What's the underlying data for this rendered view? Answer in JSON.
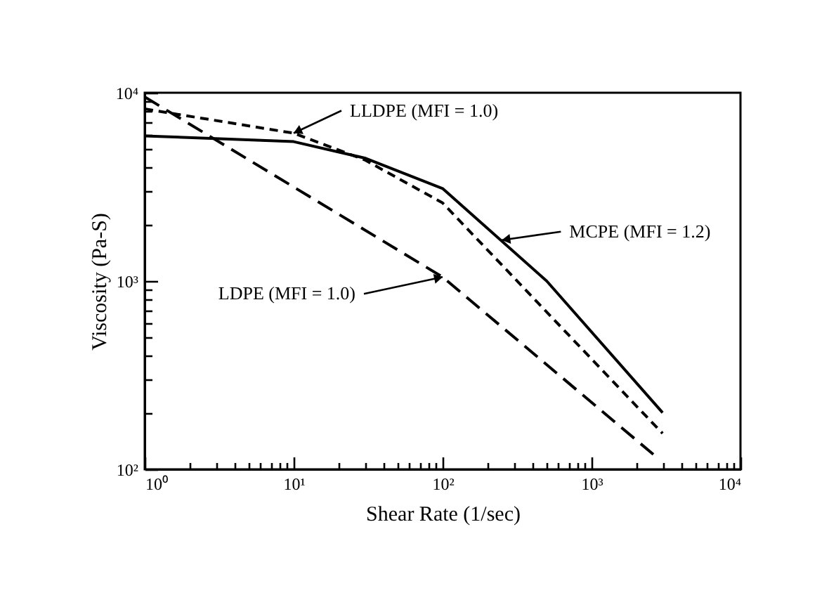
{
  "chart_data": {
    "type": "line",
    "xlabel": "Shear Rate (1/sec)",
    "ylabel": "Viscosity (Pa-S)",
    "log": "xy",
    "grid": false,
    "xlim": [
      1,
      10000
    ],
    "ylim": [
      100,
      10000
    ],
    "xticks": [
      {
        "value": 1,
        "label": "10⁰"
      },
      {
        "value": 2,
        "label": null
      },
      {
        "value": 3,
        "label": null
      },
      {
        "value": 4,
        "label": null
      },
      {
        "value": 5,
        "label": null
      },
      {
        "value": 6,
        "label": null
      },
      {
        "value": 7,
        "label": null
      },
      {
        "value": 8,
        "label": null
      },
      {
        "value": 9,
        "label": null
      },
      {
        "value": 10,
        "label": "10¹"
      },
      {
        "value": 20,
        "label": null
      },
      {
        "value": 30,
        "label": null
      },
      {
        "value": 40,
        "label": null
      },
      {
        "value": 50,
        "label": null
      },
      {
        "value": 60,
        "label": null
      },
      {
        "value": 70,
        "label": null
      },
      {
        "value": 80,
        "label": null
      },
      {
        "value": 90,
        "label": null
      },
      {
        "value": 100,
        "label": "10²"
      },
      {
        "value": 200,
        "label": null
      },
      {
        "value": 300,
        "label": null
      },
      {
        "value": 400,
        "label": null
      },
      {
        "value": 500,
        "label": null
      },
      {
        "value": 600,
        "label": null
      },
      {
        "value": 700,
        "label": null
      },
      {
        "value": 800,
        "label": null
      },
      {
        "value": 900,
        "label": null
      },
      {
        "value": 1000,
        "label": "10³"
      },
      {
        "value": 2000,
        "label": null
      },
      {
        "value": 3000,
        "label": null
      },
      {
        "value": 4000,
        "label": null
      },
      {
        "value": 5000,
        "label": null
      },
      {
        "value": 6000,
        "label": null
      },
      {
        "value": 7000,
        "label": null
      },
      {
        "value": 8000,
        "label": null
      },
      {
        "value": 9000,
        "label": null
      },
      {
        "value": 10000,
        "label": "10⁴"
      }
    ],
    "yticks": [
      {
        "value": 100,
        "label": "10²"
      },
      {
        "value": 200,
        "label": null
      },
      {
        "value": 300,
        "label": null
      },
      {
        "value": 400,
        "label": null
      },
      {
        "value": 500,
        "label": null
      },
      {
        "value": 600,
        "label": null
      },
      {
        "value": 700,
        "label": null
      },
      {
        "value": 800,
        "label": null
      },
      {
        "value": 900,
        "label": null
      },
      {
        "value": 1000,
        "label": "10³"
      },
      {
        "value": 2000,
        "label": null
      },
      {
        "value": 3000,
        "label": null
      },
      {
        "value": 4000,
        "label": null
      },
      {
        "value": 5000,
        "label": null
      },
      {
        "value": 6000,
        "label": null
      },
      {
        "value": 7000,
        "label": null
      },
      {
        "value": 8000,
        "label": null
      },
      {
        "value": 9000,
        "label": null
      },
      {
        "value": 10000,
        "label": "10⁴"
      }
    ],
    "series": [
      {
        "color": "#000000",
        "line_style": "solid",
        "x": [
          1,
          10,
          30,
          100,
          500,
          3000
        ],
        "values": [
          5900,
          5500,
          4500,
          3100,
          1000,
          200
        ]
      },
      {
        "color": "#000000",
        "line_style": "dashed",
        "x": [
          1,
          10,
          30,
          100,
          3000
        ],
        "values": [
          8200,
          6100,
          4400,
          2600,
          155
        ]
      },
      {
        "color": "#000000",
        "line_style": "dashed",
        "x": [
          1,
          100,
          2600
        ],
        "values": [
          9500,
          1050,
          120
        ]
      }
    ],
    "annotations": [
      {
        "text": "LLDPE (MFI = 1.0)",
        "x": 10,
        "y": 6100
      },
      {
        "text": "MCPE (MFI = 1.2)",
        "x": 250,
        "y": 1650
      },
      {
        "text": "LDPE (MFI = 1.0)",
        "x": 100,
        "y": 1050
      }
    ]
  }
}
